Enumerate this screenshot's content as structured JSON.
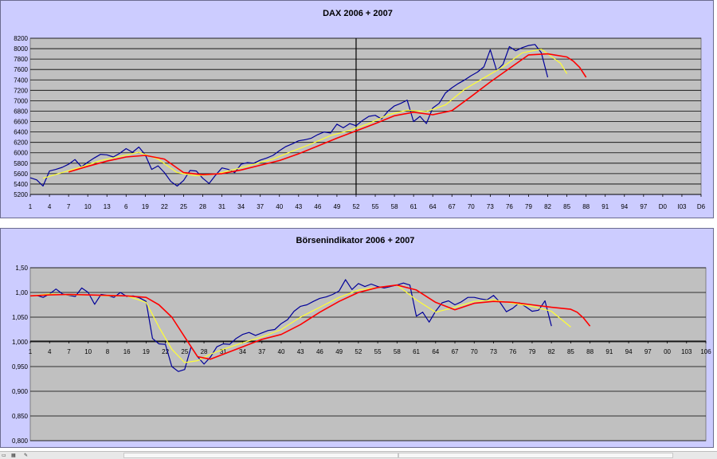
{
  "chart_data": [
    {
      "type": "line",
      "title": "DAX 2006 + 2007",
      "xlabel": "",
      "ylabel": "",
      "ylim": [
        5200,
        8200
      ],
      "xlim": [
        1,
        106
      ],
      "yticks": [
        "5200",
        "5400",
        "5600",
        "5800",
        "6000",
        "6200",
        "6400",
        "6600",
        "6800",
        "7000",
        "7200",
        "7400",
        "7600",
        "7800",
        "8000",
        "8200"
      ],
      "xticks": [
        "1",
        "4",
        "7",
        "10",
        "13",
        "6",
        "19",
        "22",
        "25",
        "28",
        "31",
        "34",
        "37",
        "40",
        "43",
        "46",
        "49",
        "52",
        "55",
        "58",
        "61",
        "64",
        "67",
        "70",
        "73",
        "76",
        "79",
        "82",
        "85",
        "88",
        "91",
        "94",
        "97",
        "D0",
        "I03",
        "D6"
      ],
      "grid": true,
      "background": "#c0c0c0",
      "vertical_marker_x": 52,
      "series": [
        {
          "color": "#000099",
          "x": [
            1,
            2,
            3,
            4,
            5,
            6,
            7,
            8,
            9,
            10,
            11,
            12,
            13,
            14,
            15,
            16,
            17,
            18,
            19,
            20,
            21,
            22,
            23,
            24,
            25,
            26,
            27,
            28,
            29,
            30,
            31,
            32,
            33,
            34,
            35,
            36,
            37,
            38,
            39,
            40,
            41,
            42,
            43,
            44,
            45,
            46,
            47,
            48,
            49,
            50,
            51,
            52,
            53,
            54,
            55,
            56,
            57,
            58,
            59,
            60,
            61,
            62,
            63,
            64,
            65,
            66,
            67,
            68,
            69,
            70,
            71,
            72,
            73,
            74,
            75,
            76,
            77,
            78,
            79,
            80,
            81,
            82
          ],
          "values": [
            5520,
            5480,
            5360,
            5650,
            5680,
            5720,
            5780,
            5870,
            5730,
            5820,
            5900,
            5970,
            5960,
            5920,
            5990,
            6080,
            6010,
            6110,
            5960,
            5680,
            5750,
            5620,
            5450,
            5360,
            5470,
            5660,
            5650,
            5510,
            5410,
            5570,
            5710,
            5680,
            5620,
            5780,
            5810,
            5800,
            5860,
            5900,
            5950,
            6040,
            6120,
            6170,
            6230,
            6250,
            6280,
            6350,
            6400,
            6380,
            6550,
            6480,
            6560,
            6520,
            6620,
            6700,
            6720,
            6650,
            6800,
            6900,
            6950,
            7010,
            6600,
            6700,
            6560,
            6860,
            6950,
            7150,
            7250,
            7330,
            7400,
            7480,
            7550,
            7650,
            7980,
            7580,
            7700,
            8040,
            7960,
            8020,
            8060,
            8080,
            7920,
            7450
          ]
        },
        {
          "color": "#ffff33",
          "x": [
            3,
            6,
            9,
            12,
            15,
            18,
            21,
            24,
            27,
            30,
            33,
            36,
            39,
            42,
            45,
            48,
            51,
            54,
            57,
            60,
            63,
            66,
            69,
            72,
            75,
            78,
            81,
            84,
            85
          ],
          "values": [
            5510,
            5620,
            5730,
            5850,
            5930,
            6010,
            5880,
            5620,
            5560,
            5590,
            5680,
            5780,
            5880,
            6030,
            6170,
            6330,
            6430,
            6560,
            6730,
            6820,
            6790,
            6920,
            7220,
            7440,
            7650,
            7920,
            7990,
            7720,
            7520
          ]
        },
        {
          "color": "#ff0000",
          "x": [
            7,
            10,
            13,
            16,
            19,
            22,
            25,
            28,
            31,
            34,
            37,
            40,
            43,
            46,
            49,
            52,
            55,
            58,
            61,
            64,
            67,
            70,
            73,
            76,
            79,
            82,
            85,
            86,
            87,
            88
          ],
          "values": [
            5630,
            5740,
            5840,
            5920,
            5950,
            5880,
            5620,
            5580,
            5600,
            5670,
            5760,
            5850,
            5980,
            6130,
            6280,
            6420,
            6560,
            6710,
            6780,
            6730,
            6810,
            7080,
            7360,
            7620,
            7880,
            7900,
            7840,
            7760,
            7640,
            7450
          ]
        }
      ]
    },
    {
      "type": "line",
      "title": "Börsenindikator 2006 + 2007",
      "xlabel": "",
      "ylabel": "",
      "ylim": [
        0.8,
        1.15
      ],
      "xlim": [
        1,
        106
      ],
      "yticks": [
        "0,800",
        "0,850",
        "0,900",
        "0,950",
        "1,000",
        "1,050",
        "1,00",
        "1,50"
      ],
      "xticks": [
        "1",
        "4",
        "7",
        "10",
        "8",
        "16",
        "19",
        "22",
        "25",
        "28",
        "31",
        "34",
        "37",
        "40",
        "43",
        "46",
        "49",
        "52",
        "55",
        "58",
        "61",
        "64",
        "67",
        "70",
        "73",
        "76",
        "79",
        "82",
        "85",
        "88",
        "91",
        "94",
        "97",
        "00",
        "103",
        "106"
      ],
      "grid": true,
      "background": "#c0c0c0",
      "series": [
        {
          "color": "#000099",
          "x": [
            1,
            2,
            3,
            4,
            5,
            6,
            7,
            8,
            9,
            10,
            11,
            12,
            13,
            14,
            15,
            16,
            17,
            18,
            19,
            20,
            21,
            22,
            23,
            24,
            25,
            26,
            27,
            28,
            29,
            30,
            31,
            32,
            33,
            34,
            35,
            36,
            37,
            38,
            39,
            40,
            41,
            42,
            43,
            44,
            45,
            46,
            47,
            48,
            49,
            50,
            51,
            52,
            53,
            54,
            55,
            56,
            57,
            58,
            59,
            60,
            61,
            62,
            63,
            64,
            65,
            66,
            67,
            68,
            69,
            70,
            71,
            72,
            73,
            74,
            75,
            76,
            77,
            78,
            79,
            80,
            81,
            82
          ],
          "values": [
            1.093,
            1.094,
            1.09,
            1.097,
            1.107,
            1.097,
            1.094,
            1.092,
            1.109,
            1.1,
            1.076,
            1.096,
            1.094,
            1.09,
            1.1,
            1.092,
            1.093,
            1.089,
            1.082,
            1.007,
            0.996,
            0.995,
            0.95,
            0.94,
            0.944,
            0.99,
            0.97,
            0.955,
            0.969,
            0.99,
            0.996,
            0.995,
            1.007,
            1.015,
            1.019,
            1.013,
            1.018,
            1.023,
            1.025,
            1.037,
            1.045,
            1.062,
            1.072,
            1.075,
            1.082,
            1.088,
            1.091,
            1.096,
            1.103,
            1.126,
            1.106,
            1.118,
            1.112,
            1.117,
            1.112,
            1.109,
            1.112,
            1.115,
            1.119,
            1.115,
            1.052,
            1.06,
            1.04,
            1.062,
            1.079,
            1.083,
            1.075,
            1.081,
            1.09,
            1.09,
            1.087,
            1.085,
            1.094,
            1.08,
            1.061,
            1.068,
            1.079,
            1.071,
            1.062,
            1.064,
            1.083,
            1.032
          ]
        },
        {
          "color": "#ffff33",
          "x": [
            1,
            4,
            7,
            10,
            13,
            16,
            19,
            21,
            23,
            25,
            27,
            29,
            31,
            34,
            37,
            40,
            43,
            46,
            49,
            52,
            55,
            58,
            61,
            64,
            67,
            70,
            73,
            76,
            79,
            82,
            85
          ],
          "values": [
            1.093,
            1.097,
            1.095,
            1.095,
            1.093,
            1.093,
            1.08,
            1.03,
            0.985,
            0.958,
            0.962,
            0.975,
            0.985,
            0.998,
            1.01,
            1.025,
            1.05,
            1.07,
            1.09,
            1.105,
            1.11,
            1.115,
            1.085,
            1.06,
            1.07,
            1.082,
            1.085,
            1.078,
            1.072,
            1.062,
            1.03
          ]
        },
        {
          "color": "#ff0000",
          "x": [
            1,
            4,
            7,
            10,
            13,
            16,
            19,
            21,
            23,
            25,
            27,
            29,
            31,
            34,
            37,
            40,
            43,
            46,
            49,
            52,
            55,
            58,
            61,
            64,
            67,
            70,
            73,
            76,
            79,
            82,
            85,
            86,
            87,
            88
          ],
          "values": [
            1.093,
            1.095,
            1.096,
            1.095,
            1.094,
            1.093,
            1.09,
            1.075,
            1.05,
            1.01,
            0.97,
            0.965,
            0.975,
            0.99,
            1.005,
            1.015,
            1.035,
            1.06,
            1.082,
            1.1,
            1.11,
            1.115,
            1.105,
            1.08,
            1.065,
            1.078,
            1.082,
            1.08,
            1.075,
            1.07,
            1.066,
            1.06,
            1.048,
            1.032
          ]
        }
      ]
    }
  ]
}
